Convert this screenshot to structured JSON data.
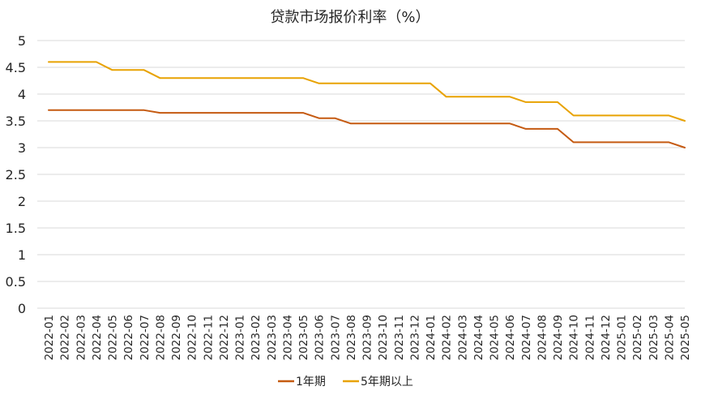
{
  "chart_data": {
    "type": "line",
    "title": "贷款市场报价利率（%）",
    "xlabel": "",
    "ylabel": "",
    "ylim": [
      0,
      5
    ],
    "yticks": [
      "0",
      "0.5",
      "1",
      "1.5",
      "2",
      "2.5",
      "3",
      "3.5",
      "4",
      "4.5",
      "5"
    ],
    "grid": true,
    "legend_position": "bottom",
    "x": [
      "2022-01",
      "2022-02",
      "2022-03",
      "2022-04",
      "2022-05",
      "2022-06",
      "2022-07",
      "2022-08",
      "2022-09",
      "2022-10",
      "2022-11",
      "2022-12",
      "2023-01",
      "2023-02",
      "2023-03",
      "2023-04",
      "2023-05",
      "2023-06",
      "2023-07",
      "2023-08",
      "2023-09",
      "2023-10",
      "2023-11",
      "2023-12",
      "2024-01",
      "2024-02",
      "2024-03",
      "2024-04",
      "2024-05",
      "2024-06",
      "2024-07",
      "2024-08",
      "2024-09",
      "2024-10",
      "2024-11",
      "2024-12",
      "2025-01",
      "2025-02",
      "2025-03",
      "2025-04",
      "2025-05"
    ],
    "series": [
      {
        "name": "1年期",
        "color": "#C55A11",
        "values": [
          3.7,
          3.7,
          3.7,
          3.7,
          3.7,
          3.7,
          3.7,
          3.65,
          3.65,
          3.65,
          3.65,
          3.65,
          3.65,
          3.65,
          3.65,
          3.65,
          3.65,
          3.55,
          3.55,
          3.45,
          3.45,
          3.45,
          3.45,
          3.45,
          3.45,
          3.45,
          3.45,
          3.45,
          3.45,
          3.45,
          3.35,
          3.35,
          3.35,
          3.1,
          3.1,
          3.1,
          3.1,
          3.1,
          3.1,
          3.1,
          3.0
        ]
      },
      {
        "name": "5年期以上",
        "color": "#E8A202",
        "values": [
          4.6,
          4.6,
          4.6,
          4.6,
          4.45,
          4.45,
          4.45,
          4.3,
          4.3,
          4.3,
          4.3,
          4.3,
          4.3,
          4.3,
          4.3,
          4.3,
          4.3,
          4.2,
          4.2,
          4.2,
          4.2,
          4.2,
          4.2,
          4.2,
          4.2,
          3.95,
          3.95,
          3.95,
          3.95,
          3.95,
          3.85,
          3.85,
          3.85,
          3.6,
          3.6,
          3.6,
          3.6,
          3.6,
          3.6,
          3.6,
          3.5
        ]
      }
    ]
  }
}
